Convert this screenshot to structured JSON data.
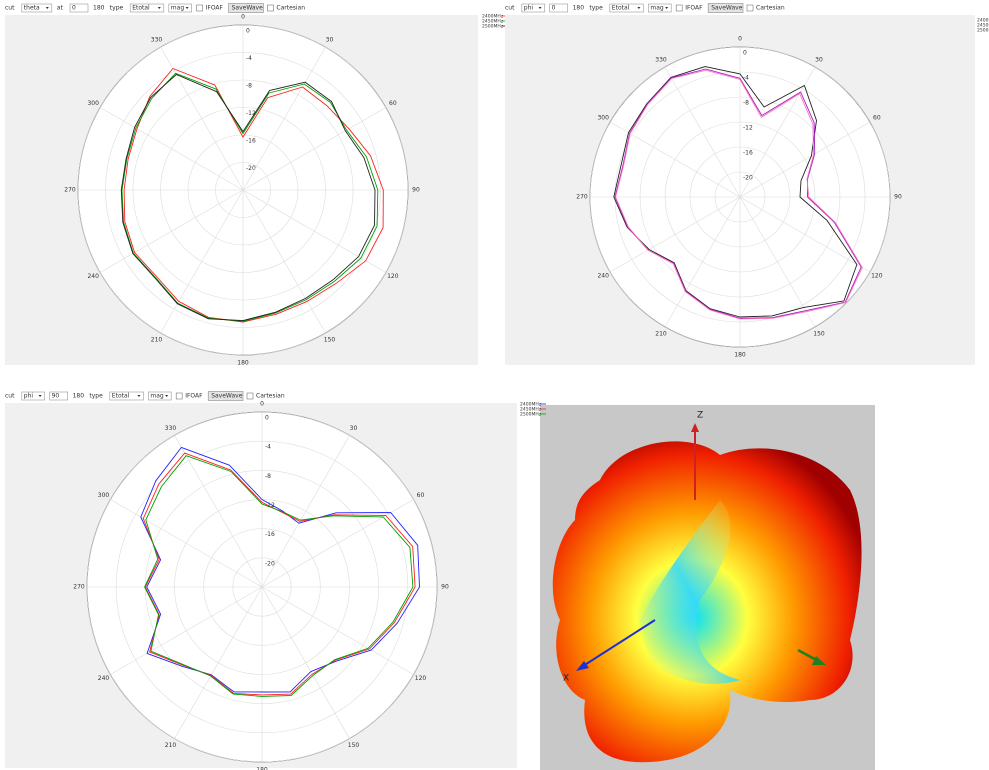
{
  "toolbars": [
    {
      "label_cut": "cut",
      "cut": "theta",
      "label_at": "at",
      "at": "0",
      "max": "180",
      "label_type": "type",
      "type": "Etotal",
      "mode": "mag",
      "ifoaf": "IFOAF",
      "button": "SaveWave",
      "cartesian": "Cartesian"
    },
    {
      "label_cut": "cut",
      "cut": "phi",
      "at": "0",
      "max": "180",
      "label_type": "type",
      "type": "Etotal",
      "mode": "mag",
      "ifoaf": "IFOAF",
      "button": "SaveWave",
      "cartesian": "Cartesian"
    },
    {
      "label_cut": "cut",
      "cut": "phi",
      "at": "90",
      "max": "180",
      "label_type": "type",
      "type": "Etotal",
      "mode": "mag",
      "ifoaf": "IFOAF",
      "button": "SaveWave",
      "cartesian": "Cartesian"
    }
  ],
  "chart_data": [
    {
      "type": "polar",
      "theta": [
        0,
        15,
        30,
        45,
        60,
        75,
        90,
        105,
        120,
        135,
        150,
        165,
        180,
        195,
        210,
        225,
        240,
        255,
        270,
        285,
        300,
        315,
        330,
        345
      ],
      "angle_ticks": [
        0,
        30,
        60,
        90,
        120,
        150,
        180,
        210,
        240,
        270,
        300,
        330
      ],
      "rlim": [
        -24,
        0
      ],
      "rticks": [
        0,
        -4,
        -8,
        -12,
        -16,
        -20
      ],
      "grid": true,
      "series": [
        {
          "name": "2400MHz",
          "color": "#ff2020",
          "values": [
            -16.3,
            -10.1,
            -6.7,
            -6.7,
            -6.2,
            -4.8,
            -3.6,
            -2.9,
            -3.4,
            -4.8,
            -5.3,
            -5.3,
            -4.8,
            -4.8,
            -5.3,
            -6.2,
            -5.8,
            -6.2,
            -6.7,
            -6.7,
            -6.2,
            -4.8,
            -3.6,
            -8.2
          ]
        },
        {
          "name": "2450MHz",
          "color": "#00a000",
          "values": [
            -15.8,
            -9.4,
            -6.2,
            -6.0,
            -6.6,
            -5.4,
            -4.4,
            -3.8,
            -4.2,
            -5.2,
            -5.6,
            -5.5,
            -4.9,
            -4.7,
            -5.0,
            -6.0,
            -5.6,
            -6.0,
            -6.4,
            -6.5,
            -6.0,
            -5.2,
            -4.4,
            -8.8
          ]
        },
        {
          "name": "2500MHz",
          "color": "#202020",
          "values": [
            -15.5,
            -9.0,
            -5.9,
            -5.8,
            -6.8,
            -5.8,
            -4.8,
            -4.2,
            -4.6,
            -5.5,
            -5.8,
            -5.6,
            -5.0,
            -4.6,
            -4.9,
            -5.9,
            -5.5,
            -5.9,
            -6.3,
            -6.4,
            -5.8,
            -5.0,
            -4.6,
            -9.2
          ]
        }
      ]
    },
    {
      "type": "polar",
      "theta": [
        0,
        15,
        30,
        45,
        60,
        75,
        90,
        105,
        120,
        135,
        150,
        165,
        180,
        195,
        210,
        225,
        240,
        255,
        270,
        285,
        300,
        315,
        330,
        345
      ],
      "angle_ticks": [
        0,
        30,
        60,
        90,
        120,
        150,
        180,
        210,
        240,
        270,
        300,
        330
      ],
      "rlim": [
        -24,
        0
      ],
      "rticks": [
        0,
        -4,
        -8,
        -12,
        -16,
        -20
      ],
      "grid": true,
      "series": [
        {
          "name": "2400MHz",
          "color": "#202020",
          "values": [
            -4.3,
            -9.1,
            -3.4,
            -6.7,
            -10.8,
            -13.9,
            -14.4,
            -9.6,
            -2.4,
            -0.5,
            -3.6,
            -4.3,
            -4.8,
            -5.5,
            -6.7,
            -9.1,
            -7.2,
            -5.3,
            -3.8,
            -4.3,
            -3.4,
            -2.9,
            -1.9,
            -2.4
          ]
        },
        {
          "name": "2450MHz",
          "color": "#a020c0",
          "values": [
            -5.0,
            -10.5,
            -4.6,
            -7.2,
            -10.2,
            -12.8,
            -13.2,
            -8.4,
            -1.6,
            -0.2,
            -3.0,
            -4.0,
            -4.6,
            -5.4,
            -6.6,
            -9.0,
            -7.0,
            -5.4,
            -4.0,
            -4.6,
            -3.6,
            -3.0,
            -2.0,
            -2.8
          ]
        },
        {
          "name": "2500MHz",
          "color": "#ff70c0",
          "values": [
            -5.2,
            -10.8,
            -4.9,
            -7.5,
            -10.4,
            -12.9,
            -13.0,
            -8.2,
            -1.4,
            -0.1,
            -2.8,
            -3.9,
            -4.5,
            -5.3,
            -6.5,
            -8.9,
            -7.0,
            -5.5,
            -4.1,
            -4.7,
            -3.7,
            -3.1,
            -2.1,
            -3.0
          ]
        }
      ]
    },
    {
      "type": "polar",
      "theta": [
        0,
        15,
        30,
        45,
        60,
        75,
        90,
        105,
        120,
        135,
        150,
        165,
        180,
        195,
        210,
        225,
        240,
        255,
        270,
        285,
        300,
        315,
        330,
        345
      ],
      "angle_ticks": [
        0,
        30,
        60,
        90,
        120,
        150,
        180,
        210,
        240,
        270,
        300,
        330
      ],
      "rlim": [
        -24,
        0
      ],
      "rticks": [
        0,
        -4,
        -8,
        -12,
        -16,
        -20
      ],
      "grid": true,
      "series": [
        {
          "name": "2400MHz",
          "color": "#2020ff",
          "values": [
            -12,
            -13.2,
            -13.9,
            -9.6,
            -3.6,
            -1.9,
            -2.4,
            -4.8,
            -6.7,
            -9.6,
            -10.6,
            -9.1,
            -9.6,
            -9.1,
            -10.1,
            -8.6,
            -5.8,
            -9.6,
            -8.2,
            -9.6,
            -4.8,
            -3.4,
            -1.9,
            -6.7
          ]
        },
        {
          "name": "2450MHz",
          "color": "#ff2020",
          "values": [
            -12.4,
            -13.4,
            -13.6,
            -10.0,
            -4.4,
            -2.6,
            -3.0,
            -5.2,
            -7.0,
            -9.8,
            -10.2,
            -8.8,
            -9.2,
            -8.9,
            -10.0,
            -8.8,
            -6.2,
            -9.4,
            -8.0,
            -9.4,
            -5.2,
            -4.0,
            -2.8,
            -7.4
          ]
        },
        {
          "name": "2500MHz",
          "color": "#00a000",
          "values": [
            -12.6,
            -13.3,
            -13.4,
            -10.2,
            -4.8,
            -3.0,
            -3.3,
            -5.4,
            -7.2,
            -9.9,
            -10.0,
            -8.6,
            -9.0,
            -8.8,
            -9.9,
            -8.9,
            -6.4,
            -9.3,
            -7.9,
            -9.2,
            -5.6,
            -4.5,
            -3.2,
            -7.6
          ]
        }
      ]
    }
  ],
  "view3d": {
    "axis_labels": [
      "Z",
      "X"
    ]
  }
}
